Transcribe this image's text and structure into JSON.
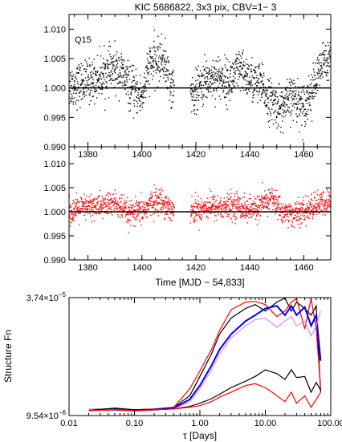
{
  "figure": {
    "title": "KIC 5686822,  3x3 pix, CBV=1− 3"
  },
  "chart_data": [
    {
      "type": "scatter",
      "panel": "top",
      "annotation": "Q15",
      "xlim": [
        1373,
        1470
      ],
      "ylim": [
        0.99,
        1.0125
      ],
      "yticks": [
        "1.010",
        "1.005",
        "1.000",
        "0.995",
        "0.990"
      ],
      "ytick_values": [
        1.01,
        1.005,
        1.0,
        0.995,
        0.99
      ],
      "xticks": [
        "1380",
        "1400",
        "1420",
        "1440",
        "1460"
      ],
      "xtick_values": [
        1380,
        1400,
        1420,
        1440,
        1460
      ],
      "reference_line": 1.0,
      "marker_color": "#000000",
      "gaps": [
        [
          1412,
          1418
        ]
      ],
      "series": [
        {
          "trend_x": [
            1373,
            1378,
            1383,
            1388,
            1392,
            1396,
            1400,
            1403,
            1406,
            1408,
            1411,
            1412,
            1418,
            1420,
            1424,
            1428,
            1432,
            1436,
            1440,
            1444,
            1448,
            1452,
            1456,
            1460,
            1464,
            1467,
            1470
          ],
          "trend_y": [
            1.0003,
            1.0008,
            1.0015,
            1.003,
            1.003,
            0.9998,
            0.9985,
            1.004,
            1.0045,
            1.005,
            1.0,
            1.0,
            0.999,
            0.9992,
            1.0015,
            1.002,
            1.001,
            1.003,
            1.0015,
            1.0005,
            0.9975,
            0.9965,
            0.9985,
            0.997,
            1.0005,
            1.004,
            1.006
          ],
          "scatter_sd": 0.0018
        }
      ]
    },
    {
      "type": "scatter",
      "panel": "middle",
      "xlabel": "Time [MJD − 54,833]",
      "xlim": [
        1373,
        1470
      ],
      "ylim": [
        0.99,
        1.0135
      ],
      "yticks": [
        "1.010",
        "1.005",
        "1.000",
        "0.995",
        "0.990"
      ],
      "ytick_values": [
        1.01,
        1.005,
        1.0,
        0.995,
        0.99
      ],
      "xticks": [
        "1380",
        "1400",
        "1420",
        "1440",
        "1460"
      ],
      "xtick_values": [
        1380,
        1400,
        1420,
        1440,
        1460
      ],
      "reference_line": 1.0,
      "marker_color": "#ff0000",
      "gaps": [
        [
          1412,
          1418
        ]
      ],
      "series": [
        {
          "trend_x": [
            1373,
            1380,
            1385,
            1390,
            1395,
            1400,
            1405,
            1408,
            1412,
            1418,
            1425,
            1430,
            1435,
            1440,
            1445,
            1448,
            1452,
            1456,
            1460,
            1465,
            1470
          ],
          "trend_y": [
            1.0,
            1.001,
            1.0012,
            1.0018,
            0.9995,
            1.0,
            1.0025,
            1.002,
            1.0,
            1.0,
            1.0012,
            1.0008,
            1.0015,
            1.0002,
            1.0015,
            1.003,
            1.0,
            0.9995,
            1.0,
            1.0015,
            1.002
          ],
          "scatter_sd": 0.0013
        }
      ]
    },
    {
      "type": "line",
      "panel": "bottom",
      "xlabel": "τ [Days]",
      "ylabel": "Structure Fn",
      "xscale": "log",
      "yscale": "log",
      "xlim": [
        0.01,
        100
      ],
      "ylim": [
        9.54e-06,
        3.74e-05
      ],
      "xticks": [
        "0.01",
        "0.10",
        "1.00",
        "10.00",
        "100.00"
      ],
      "xtick_values": [
        0.01,
        0.1,
        1,
        10,
        100
      ],
      "ytick_top_mantissa": "3.74×10",
      "ytick_top_exp": "−5",
      "ytick_bottom_mantissa": "9.54×10",
      "ytick_bottom_exp": "−6",
      "series": [
        {
          "color": "#000000",
          "x": [
            0.02,
            0.05,
            0.1,
            0.2,
            0.4,
            0.7,
            1.0,
            1.5,
            2.0,
            3.0,
            5.0,
            7.0,
            10.0,
            15.0,
            20.0,
            25.0,
            30.0,
            40.0,
            50.0,
            60.0,
            70.0
          ],
          "y": [
            1.02e-05,
            1.035e-05,
            1.02e-05,
            1.03e-05,
            1.05e-05,
            1.2e-05,
            1.5e-05,
            1.95e-05,
            2.45e-05,
            2.95e-05,
            3.3e-05,
            3.45e-05,
            3.2e-05,
            3.55e-05,
            3.72e-05,
            3.2e-05,
            3.55e-05,
            3.3e-05,
            3.05e-05,
            3.4e-05,
            1.25e-05
          ]
        },
        {
          "color": "#ff0000",
          "x": [
            0.02,
            0.05,
            0.1,
            0.2,
            0.4,
            0.7,
            1.0,
            1.5,
            2.0,
            3.0,
            5.0,
            7.0,
            10.0,
            15.0,
            20.0,
            25.0,
            30.0,
            40.0,
            50.0,
            60.0,
            70.0
          ],
          "y": [
            1.02e-05,
            1.025e-05,
            1.02e-05,
            1.03e-05,
            1.05e-05,
            1.3e-05,
            1.6e-05,
            2.05e-05,
            2.55e-05,
            3.25e-05,
            3.55e-05,
            3.58e-05,
            3.45e-05,
            3e-05,
            3.2e-05,
            3.55e-05,
            3.7e-05,
            2.6e-05,
            3.7e-05,
            2.6e-05,
            1.3e-05
          ]
        },
        {
          "color": "#0000ee",
          "x": [
            0.02,
            0.05,
            0.1,
            0.2,
            0.4,
            0.7,
            1.0,
            1.5,
            2.0,
            3.0,
            5.0,
            7.0,
            10.0,
            15.0,
            20.0,
            25.0,
            30.0,
            40.0,
            50.0,
            60.0,
            70.0
          ],
          "y": [
            1.02e-05,
            1.02e-05,
            1.01e-05,
            1.02e-05,
            1.04e-05,
            1.15e-05,
            1.35e-05,
            1.7e-05,
            2.05e-05,
            2.45e-05,
            2.85e-05,
            3.05e-05,
            3.3e-05,
            3.4e-05,
            3.05e-05,
            3.4e-05,
            3.05e-05,
            3.35e-05,
            2.7e-05,
            3.05e-05,
            1.8e-05
          ]
        },
        {
          "color": "#ee82ee",
          "x": [
            0.02,
            0.05,
            0.1,
            0.2,
            0.4,
            0.7,
            1.0,
            1.5,
            2.0,
            3.0,
            5.0,
            7.0,
            10.0,
            15.0,
            20.0,
            25.0,
            30.0,
            40.0,
            50.0,
            60.0,
            70.0
          ],
          "y": [
            1.02e-05,
            1.02e-05,
            1.01e-05,
            1.02e-05,
            1.03e-05,
            1.12e-05,
            1.3e-05,
            1.62e-05,
            1.95e-05,
            2.35e-05,
            2.7e-05,
            2.9e-05,
            2.95e-05,
            2.65e-05,
            2.85e-05,
            3e-05,
            2.7e-05,
            2.85e-05,
            2.4e-05,
            2.7e-05,
            3.2e-05
          ]
        },
        {
          "color": "#000000",
          "x": [
            0.02,
            0.05,
            0.1,
            0.2,
            0.4,
            0.7,
            1.0,
            1.5,
            2.0,
            3.0,
            5.0,
            7.0,
            10.0,
            15.0,
            20.0,
            25.0,
            30.0,
            40.0,
            50.0,
            60.0,
            70.0
          ],
          "y": [
            1.01e-05,
            1.04e-05,
            1.02e-05,
            1.02e-05,
            1.03e-05,
            1.06e-05,
            1.1e-05,
            1.16e-05,
            1.22e-05,
            1.32e-05,
            1.42e-05,
            1.5e-05,
            1.62e-05,
            1.55e-05,
            1.45e-05,
            1.62e-05,
            1.48e-05,
            1.5e-05,
            1.25e-05,
            1.4e-05,
            1.28e-05
          ]
        },
        {
          "color": "#ff0000",
          "x": [
            0.02,
            0.05,
            0.1,
            0.2,
            0.4,
            0.7,
            1.0,
            1.5,
            2.0,
            3.0,
            5.0,
            7.0,
            10.0,
            15.0,
            20.0,
            25.0,
            30.0,
            40.0,
            50.0,
            60.0,
            70.0
          ],
          "y": [
            1.01e-05,
            1.02e-05,
            1.01e-05,
            1.02e-05,
            1.03e-05,
            1.05e-05,
            1.07e-05,
            1.12e-05,
            1.18e-05,
            1.25e-05,
            1.35e-05,
            1.38e-05,
            1.32e-05,
            1.2e-05,
            1.12e-05,
            1.25e-05,
            1.1e-05,
            1.2e-05,
            1.05e-05,
            1.15e-05,
            1.25e-05
          ]
        }
      ]
    }
  ]
}
